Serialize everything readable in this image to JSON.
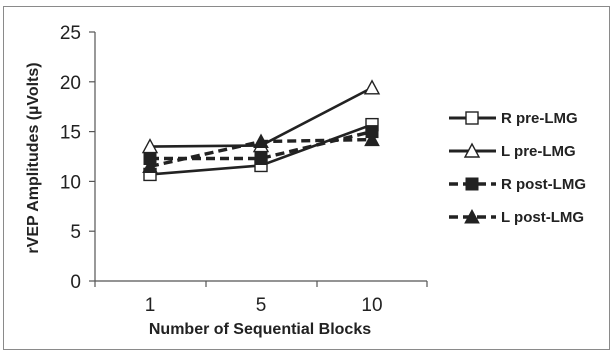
{
  "chart_data": {
    "type": "line",
    "title": "",
    "xlabel": "Number of Sequential Blocks",
    "ylabel": "rVEP Amplitudes (µVolts)",
    "categories": [
      "1",
      "5",
      "10"
    ],
    "ylim": [
      0,
      25
    ],
    "yticks": [
      "0",
      "5",
      "10",
      "15",
      "20",
      "25"
    ],
    "grid": false,
    "legend_position": "right",
    "series": [
      {
        "name": "R pre-LMG",
        "values": [
          10.7,
          11.6,
          15.7
        ],
        "marker": "square-open",
        "dash": "solid",
        "color": "#222222"
      },
      {
        "name": "L pre-LMG",
        "values": [
          13.5,
          13.6,
          19.4
        ],
        "marker": "triangle-open",
        "dash": "solid",
        "color": "#222222"
      },
      {
        "name": "R post-LMG",
        "values": [
          12.3,
          12.3,
          15.0
        ],
        "marker": "square-filled",
        "dash": "dashed",
        "color": "#222222"
      },
      {
        "name": "L post-LMG",
        "values": [
          11.5,
          14.0,
          14.2
        ],
        "marker": "triangle-filled",
        "dash": "dashed",
        "color": "#222222"
      }
    ]
  }
}
